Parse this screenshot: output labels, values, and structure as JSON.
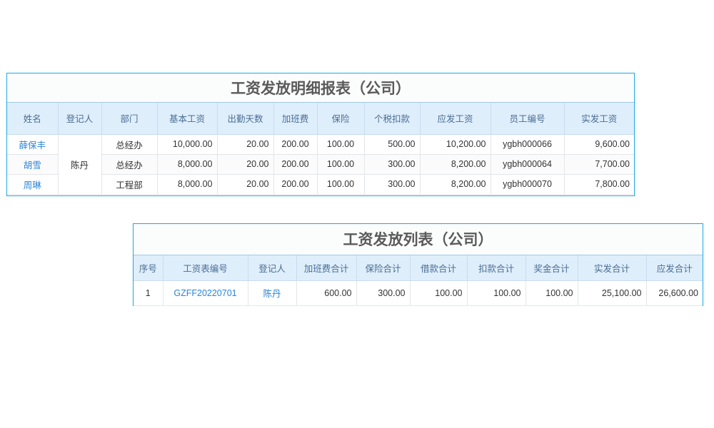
{
  "detail": {
    "title": "工资发放明细报表（公司）",
    "headers": [
      "姓名",
      "登记人",
      "部门",
      "基本工资",
      "出勤天数",
      "加班费",
      "保险",
      "个税扣款",
      "应发工资",
      "员工编号",
      "实发工资"
    ],
    "registrar": "陈丹",
    "rows": [
      {
        "name": "薛保丰",
        "dept": "总经办",
        "base": "10,000.00",
        "days": "20.00",
        "overtime": "200.00",
        "insurance": "100.00",
        "tax": "500.00",
        "gross": "10,200.00",
        "emp_no": "ygbh000066",
        "net": "9,600.00"
      },
      {
        "name": "胡雪",
        "dept": "总经办",
        "base": "8,000.00",
        "days": "20.00",
        "overtime": "200.00",
        "insurance": "100.00",
        "tax": "300.00",
        "gross": "8,200.00",
        "emp_no": "ygbh000064",
        "net": "7,700.00"
      },
      {
        "name": "周琳",
        "dept": "工程部",
        "base": "8,000.00",
        "days": "20.00",
        "overtime": "200.00",
        "insurance": "100.00",
        "tax": "300.00",
        "gross": "8,200.00",
        "emp_no": "ygbh000070",
        "net": "7,800.00"
      }
    ]
  },
  "list": {
    "title": "工资发放列表（公司）",
    "headers": [
      "序号",
      "工资表编号",
      "登记人",
      "加班费合计",
      "保险合计",
      "借款合计",
      "扣款合计",
      "奖金合计",
      "实发合计",
      "应发合计"
    ],
    "rows": [
      {
        "seq": "1",
        "sheet_no": "GZFF20220701",
        "registrar": "陈丹",
        "overtime_total": "600.00",
        "insurance_total": "300.00",
        "loan_total": "100.00",
        "deduction_total": "100.00",
        "bonus_total": "100.00",
        "net_total": "25,100.00",
        "gross_total": "26,600.00"
      }
    ]
  },
  "colors": {
    "border": "#1aa9e6",
    "header_bg": "#dfeefb",
    "link": "#2a84d8"
  }
}
